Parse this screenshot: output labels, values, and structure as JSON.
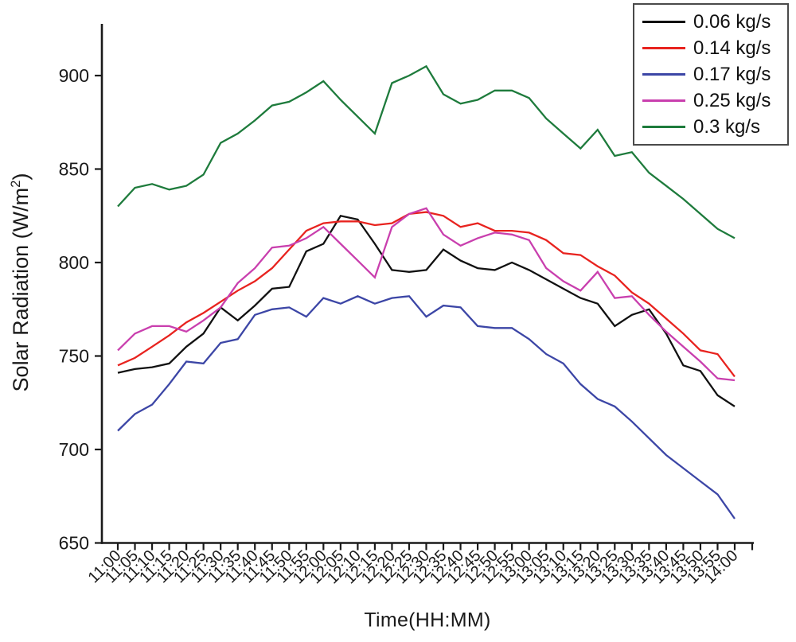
{
  "chart_data": {
    "type": "line",
    "title": "",
    "xlabel": "Time(HH:MM)",
    "ylabel": "Solar Radiation (W/m²)",
    "ylabel_parts": {
      "prefix": "Solar Radiation (W/m",
      "sup": "2",
      "suffix": ")"
    },
    "ylim": [
      650,
      927
    ],
    "yticks": [
      650,
      700,
      750,
      800,
      850,
      900
    ],
    "grid": false,
    "legend_position": "top-right",
    "axis_color": "#1a1a1a",
    "categories": [
      "11:00",
      "11:05",
      "11:10",
      "11:15",
      "11:20",
      "11:25",
      "11:30",
      "11:35",
      "11:40",
      "11:45",
      "11:50",
      "11:55",
      "12:00",
      "12:05",
      "12:10",
      "12:15",
      "12:20",
      "12:25",
      "12:30",
      "12:35",
      "12:40",
      "12:45",
      "12:50",
      "12:55",
      "13:00",
      "13:05",
      "13:10",
      "13:15",
      "13:20",
      "13:25",
      "13:30",
      "13:35",
      "13:40",
      "13:45",
      "13:50",
      "13:55",
      "14:00"
    ],
    "series": [
      {
        "name": "0.06 kg/s",
        "color": "#111111",
        "values": [
          741,
          743,
          744,
          746,
          755,
          762,
          776,
          769,
          777,
          786,
          787,
          806,
          810,
          825,
          823,
          810,
          796,
          795,
          796,
          807,
          801,
          797,
          796,
          800,
          796,
          791,
          786,
          781,
          778,
          766,
          772,
          775,
          762,
          745,
          742,
          729,
          723
        ]
      },
      {
        "name": "0.14 kg/s",
        "color": "#e8231f",
        "values": [
          745,
          749,
          755,
          761,
          768,
          773,
          779,
          785,
          790,
          797,
          807,
          817,
          821,
          822,
          822,
          820,
          821,
          826,
          827,
          825,
          819,
          821,
          817,
          817,
          816,
          812,
          805,
          804,
          798,
          793,
          784,
          778,
          770,
          762,
          753,
          751,
          739
        ]
      },
      {
        "name": "0.17 kg/s",
        "color": "#3c46a6",
        "values": [
          710,
          719,
          724,
          735,
          747,
          746,
          757,
          759,
          772,
          775,
          776,
          771,
          781,
          778,
          782,
          778,
          781,
          782,
          771,
          777,
          776,
          766,
          765,
          765,
          759,
          751,
          746,
          735,
          727,
          723,
          715,
          706,
          697,
          690,
          683,
          676,
          663
        ]
      },
      {
        "name": "0.25 kg/s",
        "color": "#c93fae",
        "values": [
          753,
          762,
          766,
          766,
          763,
          769,
          776,
          789,
          797,
          808,
          809,
          813,
          819,
          810,
          801,
          792,
          819,
          826,
          829,
          815,
          809,
          813,
          816,
          815,
          812,
          797,
          790,
          785,
          795,
          781,
          782,
          772,
          763,
          755,
          747,
          738,
          737
        ]
      },
      {
        "name": "0.3 kg/s",
        "color": "#1e7b3c",
        "values": [
          830,
          840,
          842,
          839,
          841,
          847,
          864,
          869,
          876,
          884,
          886,
          891,
          897,
          887,
          878,
          869,
          896,
          900,
          905,
          890,
          885,
          887,
          892,
          892,
          888,
          877,
          869,
          861,
          871,
          857,
          859,
          848,
          841,
          834,
          826,
          818,
          813
        ]
      }
    ]
  }
}
